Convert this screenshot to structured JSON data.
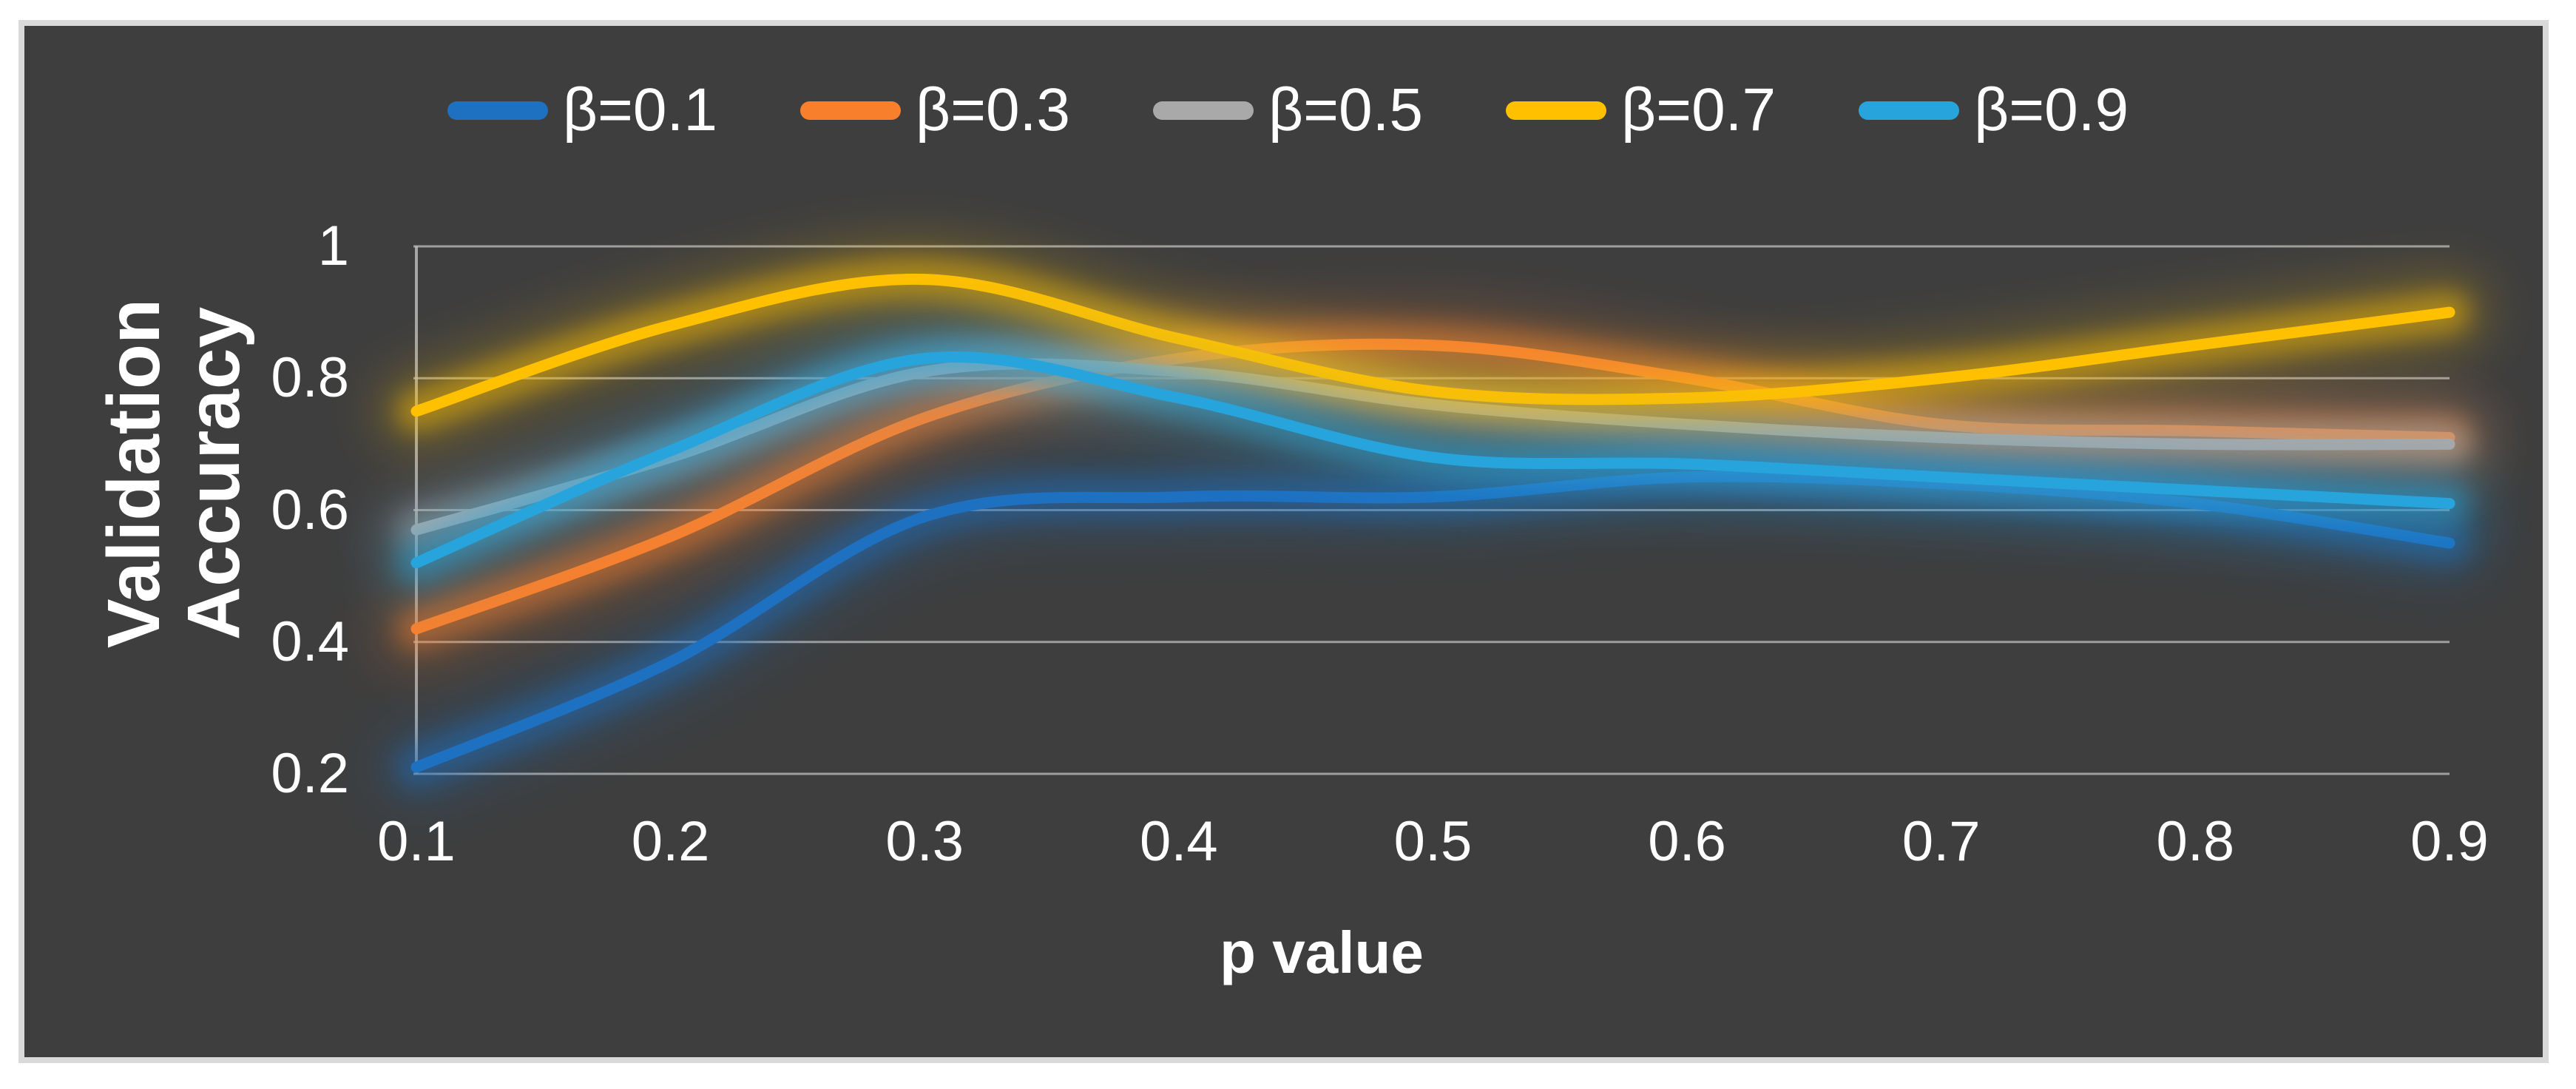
{
  "frame": {
    "outer_background": "#FFFFFF",
    "border_color": "#D9D9D9",
    "chart_background": "#3E3E3E",
    "gridline_color": "#BFBFBF",
    "text_color": "#FFFFFF"
  },
  "chart_data": {
    "type": "line",
    "title": "",
    "xlabel": "p value",
    "ylabel": "Validation Accuracy",
    "ylabel_lines": [
      "Validation",
      "Accuracy"
    ],
    "x": [
      0.1,
      0.2,
      0.3,
      0.4,
      0.5,
      0.6,
      0.7,
      0.8,
      0.9
    ],
    "x_tick_labels": [
      "0.1",
      "0.2",
      "0.3",
      "0.4",
      "0.5",
      "0.6",
      "0.7",
      "0.8",
      "0.9"
    ],
    "y_ticks": [
      0.2,
      0.4,
      0.6,
      0.8,
      1
    ],
    "y_tick_labels": [
      "0.2",
      "0.4",
      "0.6",
      "0.8",
      "1"
    ],
    "ylim": [
      0.2,
      1.0
    ],
    "grid": "horizontal",
    "legend_position": "top-center",
    "line_style": "smooth",
    "effects": "outer-glow",
    "series": [
      {
        "name": "β=0.1",
        "color": "#1E70C1",
        "values": [
          0.21,
          0.37,
          0.59,
          0.62,
          0.62,
          0.65,
          0.64,
          0.61,
          0.55
        ]
      },
      {
        "name": "β=0.3",
        "color": "#F8802D",
        "values": [
          0.42,
          0.56,
          0.74,
          0.83,
          0.85,
          0.8,
          0.73,
          0.72,
          0.71
        ]
      },
      {
        "name": "β=0.5",
        "color": "#A9A9A9",
        "values": [
          0.57,
          0.68,
          0.81,
          0.81,
          0.76,
          0.73,
          0.71,
          0.7,
          0.7
        ]
      },
      {
        "name": "β=0.7",
        "color": "#FFC000",
        "values": [
          0.75,
          0.88,
          0.95,
          0.86,
          0.78,
          0.77,
          0.8,
          0.85,
          0.9
        ]
      },
      {
        "name": "β=0.9",
        "color": "#28A4DC",
        "values": [
          0.52,
          0.69,
          0.83,
          0.77,
          0.68,
          0.67,
          0.65,
          0.63,
          0.61
        ]
      }
    ]
  }
}
